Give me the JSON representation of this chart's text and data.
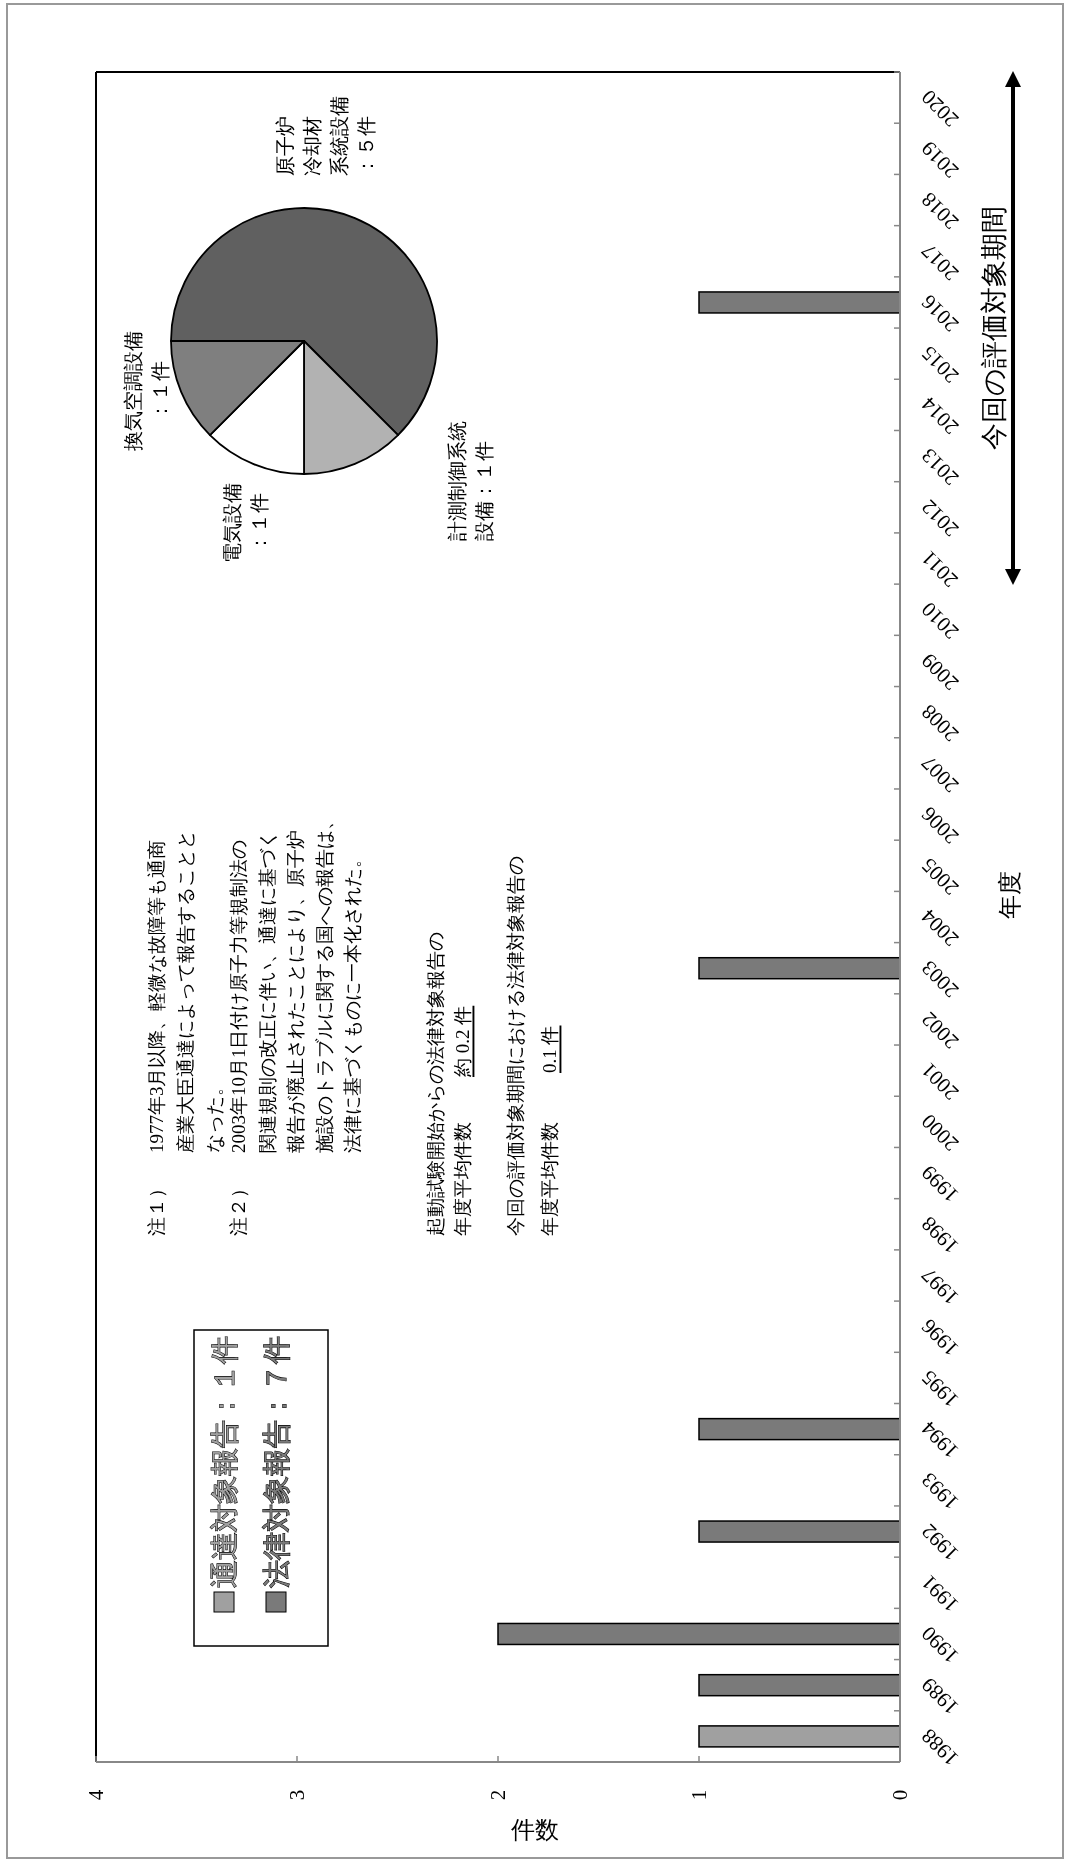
{
  "chart_data": [
    {
      "type": "bar",
      "orientation": "horizontal",
      "stacked": true,
      "categories": [
        "2020",
        "2019",
        "2018",
        "2017",
        "2016",
        "2015",
        "2014",
        "2013",
        "2012",
        "2011",
        "2010",
        "2009",
        "2008",
        "2007",
        "2006",
        "2005",
        "2004",
        "2003",
        "2002",
        "2001",
        "2000",
        "1999",
        "1998",
        "1997",
        "1996",
        "1995",
        "1994",
        "1993",
        "1992",
        "1991",
        "1990",
        "1989",
        "1988"
      ],
      "series": [
        {
          "name": "通達対象報告：１件",
          "color": "#a0a0a0",
          "values": [
            0,
            0,
            0,
            0,
            0,
            0,
            0,
            0,
            0,
            0,
            0,
            0,
            0,
            0,
            0,
            0,
            0,
            0,
            0,
            0,
            0,
            0,
            0,
            0,
            0,
            0,
            0,
            0,
            0,
            0,
            0,
            0,
            1
          ]
        },
        {
          "name": "法律対象報告：７件",
          "color": "#7a7a7a",
          "values": [
            0,
            0,
            0,
            0,
            1,
            0,
            0,
            0,
            0,
            0,
            0,
            0,
            0,
            0,
            0,
            0,
            0,
            1,
            0,
            0,
            0,
            0,
            0,
            0,
            0,
            0,
            1,
            0,
            1,
            0,
            2,
            1,
            0
          ]
        }
      ],
      "xlim": [
        4,
        0
      ],
      "xticks": [
        4,
        3,
        2,
        1,
        0
      ],
      "xlabel": "件数",
      "ylabel": "年度",
      "legend": "bottom left",
      "annotations": [
        "注１）",
        "1977年3月以降、軽微な故障等も通商",
        "産業大臣通達によって報告することと",
        "なった。",
        "注２）",
        "2003年10月1日付け原子力等規制法の",
        "関連規則の改正に伴い、通達に基づく",
        "報告が廃止されたことにより、原子炉",
        "施設のトラブルに関する国への報告は、",
        "法律に基づくものに一本化された。",
        "起動試験開始からの法律対象報告の",
        "年度平均件数",
        "約 0.2 件",
        "今回の評価対象期間における法律対象報告の",
        "年度平均件数",
        "0.1 件",
        "今回の評価対象期間"
      ]
    },
    {
      "type": "pie",
      "categories": [
        "原子炉冷却材系統設備：５件",
        "計測制御系統設備：１件",
        "電気設備：１件",
        "換気空調設備：１件"
      ],
      "values": [
        5,
        1,
        1,
        1
      ],
      "colors": [
        "#606060",
        "#b2b2b2",
        "#ffffff",
        "#7f7f7f"
      ]
    }
  ]
}
